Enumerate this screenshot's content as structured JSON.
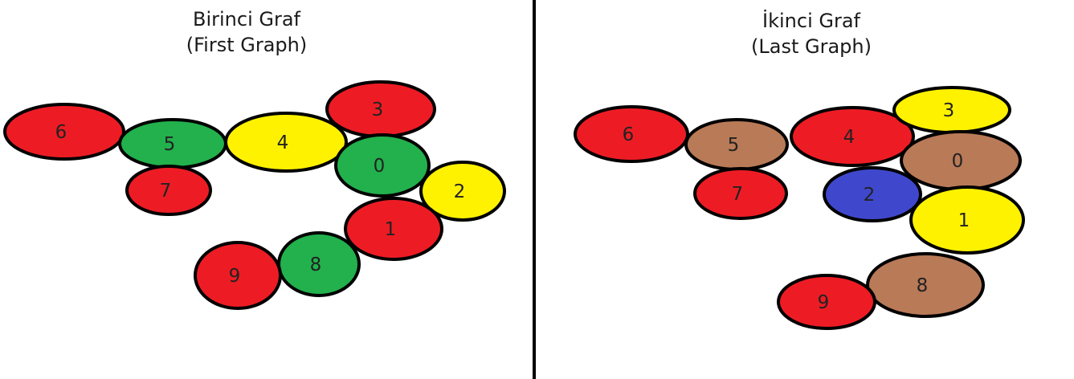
{
  "colors": {
    "red": "#ed1c24",
    "green": "#22b14c",
    "yellow": "#fff200",
    "blue": "#3f48cc",
    "brown": "#b97a57",
    "outline": "#000000"
  },
  "graphs": [
    {
      "title_line1": "Birinci Graf",
      "title_line2": "(First Graph)",
      "nodes": [
        {
          "label": "6",
          "color": "red"
        },
        {
          "label": "5",
          "color": "green"
        },
        {
          "label": "4",
          "color": "yellow"
        },
        {
          "label": "3",
          "color": "red"
        },
        {
          "label": "0",
          "color": "green"
        },
        {
          "label": "7",
          "color": "red"
        },
        {
          "label": "2",
          "color": "yellow"
        },
        {
          "label": "1",
          "color": "red"
        },
        {
          "label": "8",
          "color": "green"
        },
        {
          "label": "9",
          "color": "red"
        }
      ]
    },
    {
      "title_line1": "İkinci Graf",
      "title_line2": "(Last Graph)",
      "nodes": [
        {
          "label": "6",
          "color": "red"
        },
        {
          "label": "5",
          "color": "brown"
        },
        {
          "label": "4",
          "color": "red"
        },
        {
          "label": "3",
          "color": "yellow"
        },
        {
          "label": "0",
          "color": "brown"
        },
        {
          "label": "7",
          "color": "red"
        },
        {
          "label": "2",
          "color": "blue"
        },
        {
          "label": "1",
          "color": "yellow"
        },
        {
          "label": "8",
          "color": "brown"
        },
        {
          "label": "9",
          "color": "red"
        }
      ]
    }
  ]
}
